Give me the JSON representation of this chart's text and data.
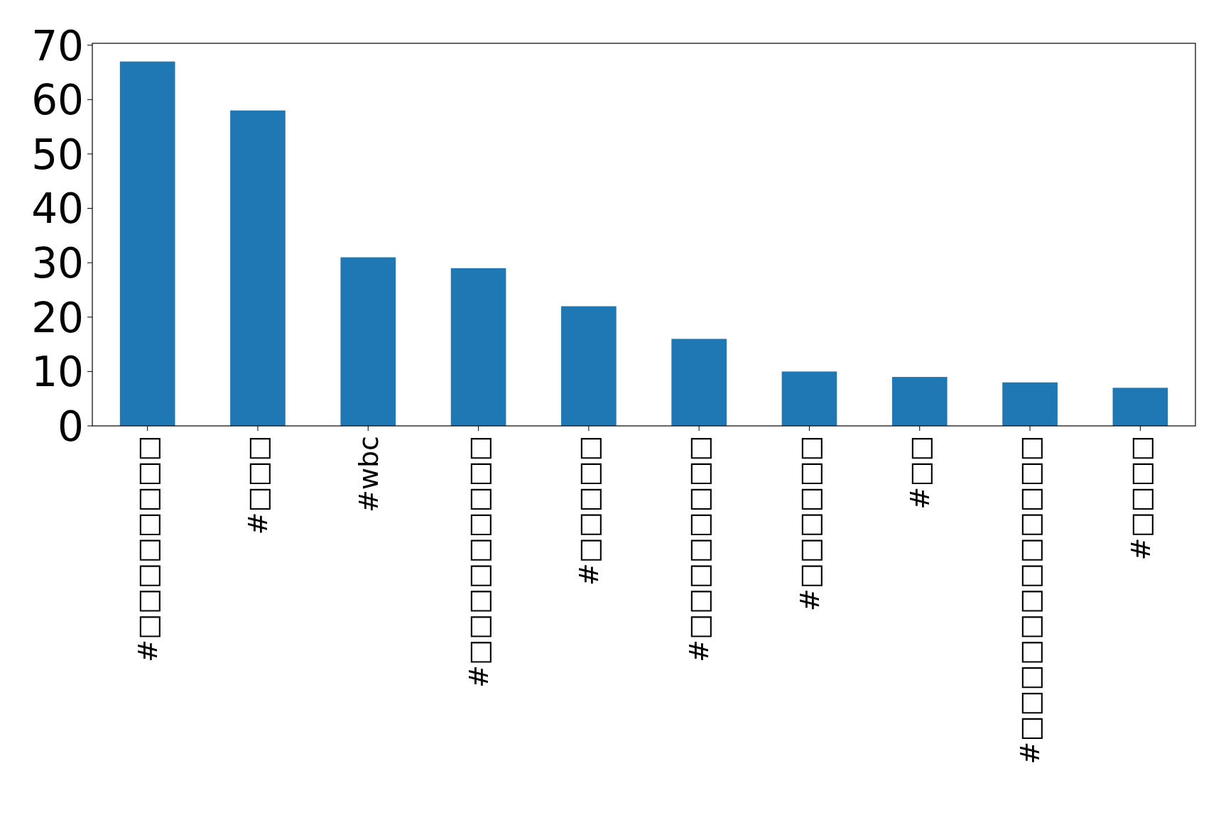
{
  "chart_data": {
    "type": "bar",
    "categories": [
      "#□□□□□□□□",
      "#□□□",
      "#wbc",
      "#□□□□□□□□□",
      "#□□□□□",
      "#□□□□□□□□",
      "#□□□□□□",
      "#□□",
      "#□□□□□□□□□□□□",
      "#□□□□"
    ],
    "values": [
      67,
      58,
      31,
      29,
      22,
      16,
      10,
      9,
      8,
      7
    ],
    "color": "#1f77b4",
    "ylim": [
      0,
      70.35
    ],
    "yticks": [
      0,
      10,
      20,
      30,
      40,
      50,
      60,
      70
    ]
  }
}
